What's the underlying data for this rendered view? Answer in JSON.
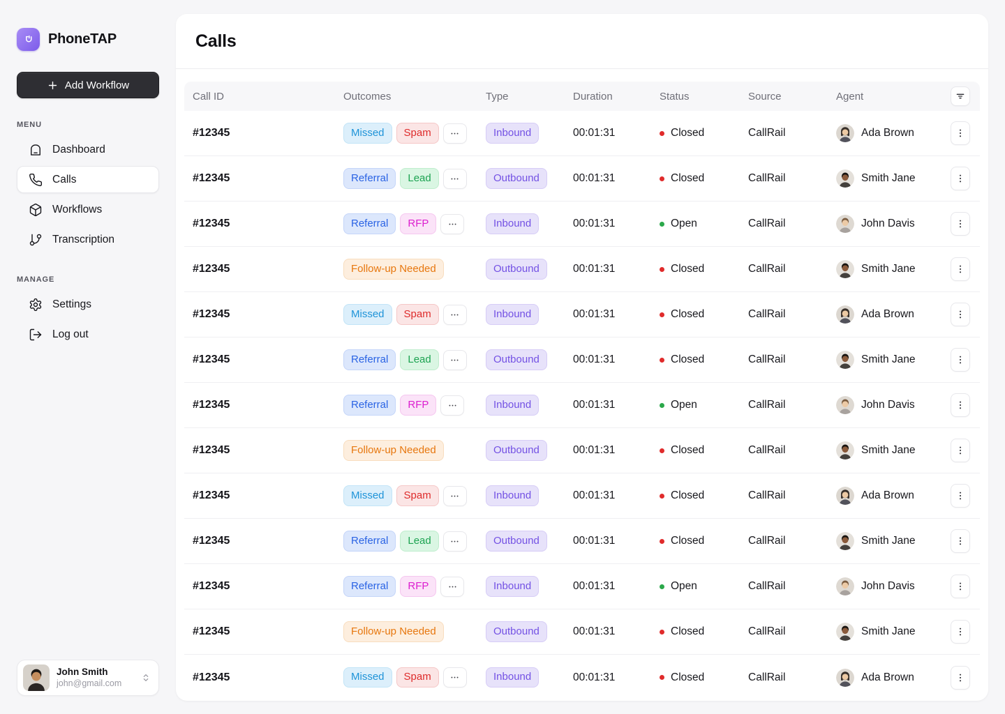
{
  "brand": {
    "name": "PhoneTAP",
    "logo_icon": "plug-icon"
  },
  "sidebar": {
    "add_workflow": {
      "label": "Add Workflow",
      "icon": "plus-icon"
    },
    "sections": [
      {
        "heading": "MENU",
        "items": [
          {
            "label": "Dashboard",
            "icon": "home-icon",
            "active": false
          },
          {
            "label": "Calls",
            "icon": "phone-icon",
            "active": true
          },
          {
            "label": "Workflows",
            "icon": "cube-icon",
            "active": false
          },
          {
            "label": "Transcription",
            "icon": "branch-icon",
            "active": false
          }
        ]
      },
      {
        "heading": "MANAGE",
        "items": [
          {
            "label": "Settings",
            "icon": "gear-icon",
            "active": false
          },
          {
            "label": "Log out",
            "icon": "logout-icon",
            "active": false
          }
        ]
      }
    ],
    "user": {
      "name": "John Smith",
      "email": "john@gmail.com",
      "avatar": "john-smith",
      "chevron_icon": "chevrons-up-down-icon"
    }
  },
  "page": {
    "title": "Calls"
  },
  "table": {
    "columns": [
      "Call ID",
      "Outcomes",
      "Type",
      "Duration",
      "Status",
      "Source",
      "Agent"
    ],
    "filter_icon": "filter-icon",
    "rows": [
      {
        "call_id": "#12345",
        "outcomes": [
          {
            "label": "Missed",
            "variant": "missed"
          },
          {
            "label": "Spam",
            "variant": "spam"
          }
        ],
        "more": true,
        "type": {
          "label": "Inbound",
          "variant": "type"
        },
        "duration": "00:01:31",
        "status": {
          "label": "Closed",
          "variant": "closed"
        },
        "source": "CallRail",
        "agent": {
          "name": "Ada Brown",
          "avatar": "ada"
        }
      },
      {
        "call_id": "#12345",
        "outcomes": [
          {
            "label": "Referral",
            "variant": "referral"
          },
          {
            "label": "Lead",
            "variant": "lead"
          }
        ],
        "more": true,
        "type": {
          "label": "Outbound",
          "variant": "type"
        },
        "duration": "00:01:31",
        "status": {
          "label": "Closed",
          "variant": "closed"
        },
        "source": "CallRail",
        "agent": {
          "name": "Smith Jane",
          "avatar": "smith"
        }
      },
      {
        "call_id": "#12345",
        "outcomes": [
          {
            "label": "Referral",
            "variant": "referral"
          },
          {
            "label": "RFP",
            "variant": "rfp"
          }
        ],
        "more": true,
        "type": {
          "label": "Inbound",
          "variant": "type"
        },
        "duration": "00:01:31",
        "status": {
          "label": "Open",
          "variant": "open"
        },
        "source": "CallRail",
        "agent": {
          "name": "John Davis",
          "avatar": "john"
        }
      },
      {
        "call_id": "#12345",
        "outcomes": [
          {
            "label": "Follow-up Needed",
            "variant": "followup"
          }
        ],
        "more": false,
        "type": {
          "label": "Outbound",
          "variant": "type"
        },
        "duration": "00:01:31",
        "status": {
          "label": "Closed",
          "variant": "closed"
        },
        "source": "CallRail",
        "agent": {
          "name": "Smith Jane",
          "avatar": "smith"
        }
      },
      {
        "call_id": "#12345",
        "outcomes": [
          {
            "label": "Missed",
            "variant": "missed"
          },
          {
            "label": "Spam",
            "variant": "spam"
          }
        ],
        "more": true,
        "type": {
          "label": "Inbound",
          "variant": "type"
        },
        "duration": "00:01:31",
        "status": {
          "label": "Closed",
          "variant": "closed"
        },
        "source": "CallRail",
        "agent": {
          "name": "Ada Brown",
          "avatar": "ada"
        }
      },
      {
        "call_id": "#12345",
        "outcomes": [
          {
            "label": "Referral",
            "variant": "referral"
          },
          {
            "label": "Lead",
            "variant": "lead"
          }
        ],
        "more": true,
        "type": {
          "label": "Outbound",
          "variant": "type"
        },
        "duration": "00:01:31",
        "status": {
          "label": "Closed",
          "variant": "closed"
        },
        "source": "CallRail",
        "agent": {
          "name": "Smith Jane",
          "avatar": "smith"
        }
      },
      {
        "call_id": "#12345",
        "outcomes": [
          {
            "label": "Referral",
            "variant": "referral"
          },
          {
            "label": "RFP",
            "variant": "rfp"
          }
        ],
        "more": true,
        "type": {
          "label": "Inbound",
          "variant": "type"
        },
        "duration": "00:01:31",
        "status": {
          "label": "Open",
          "variant": "open"
        },
        "source": "CallRail",
        "agent": {
          "name": "John Davis",
          "avatar": "john"
        }
      },
      {
        "call_id": "#12345",
        "outcomes": [
          {
            "label": "Follow-up Needed",
            "variant": "followup"
          }
        ],
        "more": false,
        "type": {
          "label": "Outbound",
          "variant": "type"
        },
        "duration": "00:01:31",
        "status": {
          "label": "Closed",
          "variant": "closed"
        },
        "source": "CallRail",
        "agent": {
          "name": "Smith Jane",
          "avatar": "smith"
        }
      },
      {
        "call_id": "#12345",
        "outcomes": [
          {
            "label": "Missed",
            "variant": "missed"
          },
          {
            "label": "Spam",
            "variant": "spam"
          }
        ],
        "more": true,
        "type": {
          "label": "Inbound",
          "variant": "type"
        },
        "duration": "00:01:31",
        "status": {
          "label": "Closed",
          "variant": "closed"
        },
        "source": "CallRail",
        "agent": {
          "name": "Ada Brown",
          "avatar": "ada"
        }
      },
      {
        "call_id": "#12345",
        "outcomes": [
          {
            "label": "Referral",
            "variant": "referral"
          },
          {
            "label": "Lead",
            "variant": "lead"
          }
        ],
        "more": true,
        "type": {
          "label": "Outbound",
          "variant": "type"
        },
        "duration": "00:01:31",
        "status": {
          "label": "Closed",
          "variant": "closed"
        },
        "source": "CallRail",
        "agent": {
          "name": "Smith Jane",
          "avatar": "smith"
        }
      },
      {
        "call_id": "#12345",
        "outcomes": [
          {
            "label": "Referral",
            "variant": "referral"
          },
          {
            "label": "RFP",
            "variant": "rfp"
          }
        ],
        "more": true,
        "type": {
          "label": "Inbound",
          "variant": "type"
        },
        "duration": "00:01:31",
        "status": {
          "label": "Open",
          "variant": "open"
        },
        "source": "CallRail",
        "agent": {
          "name": "John Davis",
          "avatar": "john"
        }
      },
      {
        "call_id": "#12345",
        "outcomes": [
          {
            "label": "Follow-up Needed",
            "variant": "followup"
          }
        ],
        "more": false,
        "type": {
          "label": "Outbound",
          "variant": "type"
        },
        "duration": "00:01:31",
        "status": {
          "label": "Closed",
          "variant": "closed"
        },
        "source": "CallRail",
        "agent": {
          "name": "Smith Jane",
          "avatar": "smith"
        }
      },
      {
        "call_id": "#12345",
        "outcomes": [
          {
            "label": "Missed",
            "variant": "missed"
          },
          {
            "label": "Spam",
            "variant": "spam"
          }
        ],
        "more": true,
        "type": {
          "label": "Inbound",
          "variant": "type"
        },
        "duration": "00:01:31",
        "status": {
          "label": "Closed",
          "variant": "closed"
        },
        "source": "CallRail",
        "agent": {
          "name": "Ada Brown",
          "avatar": "ada"
        }
      }
    ]
  },
  "colors": {
    "accent": "#7C5BEA",
    "sidebar_button_bg": "#2E2E33",
    "status": {
      "closed": "#E02B2B",
      "open": "#2BA84A"
    },
    "badges": {
      "missed": {
        "bg": "#DCEFFB",
        "text": "#1E93D8",
        "border": "#C2E4F7"
      },
      "spam": {
        "bg": "#FBE5E5",
        "text": "#DE2B2B",
        "border": "#F5C7C7"
      },
      "referral": {
        "bg": "#DCE7FC",
        "text": "#2A63E4",
        "border": "#C4D5F9"
      },
      "lead": {
        "bg": "#DAF6E3",
        "text": "#1CA351",
        "border": "#BFEDCD"
      },
      "rfp": {
        "bg": "#FBE3F8",
        "text": "#DC1ECF",
        "border": "#F5C6EF"
      },
      "followup": {
        "bg": "#FDEEDE",
        "text": "#E7770E",
        "border": "#F8DDBE"
      },
      "type": {
        "bg": "#E7E2FA",
        "text": "#7351E4",
        "border": "#D6CCF6"
      }
    }
  }
}
